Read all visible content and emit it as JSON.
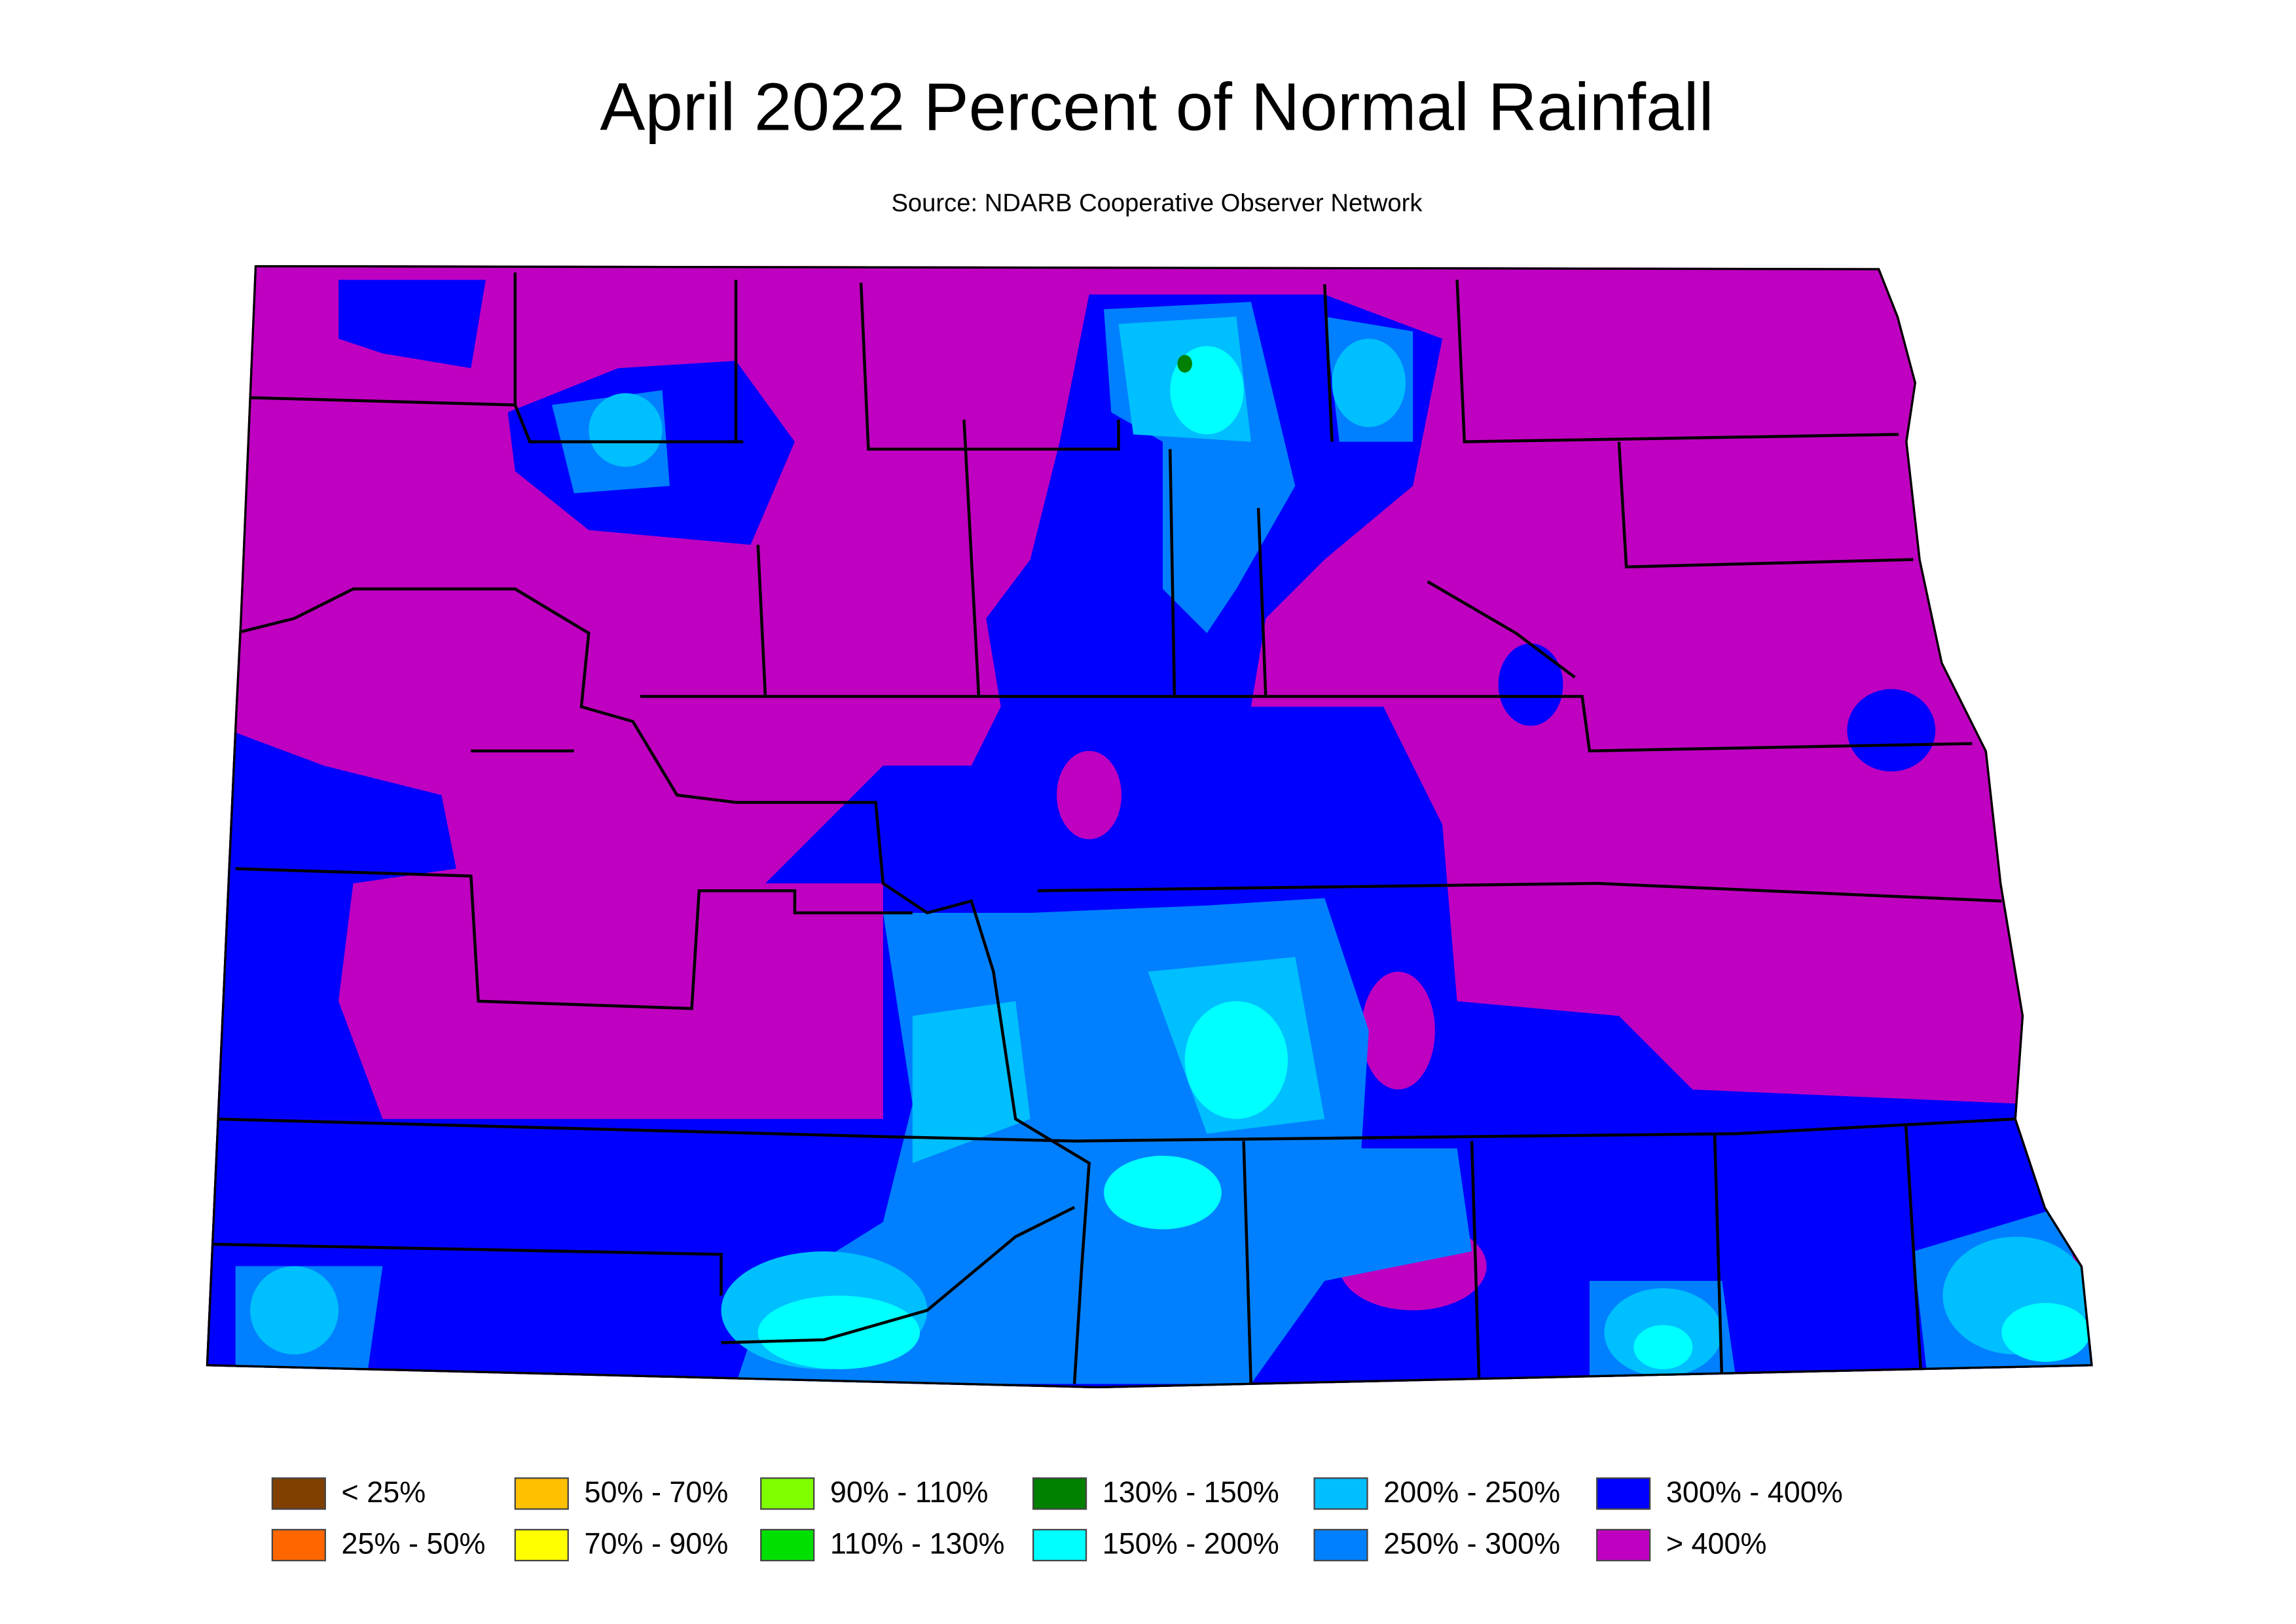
{
  "title": "April 2022 Percent of Normal Rainfall",
  "subtitle": "Source: NDARB Cooperative Observer Network",
  "legend": [
    {
      "label": "< 25%",
      "color": "#7f3f00"
    },
    {
      "label": "25% - 50%",
      "color": "#ff6600"
    },
    {
      "label": "50% - 70%",
      "color": "#ffc000"
    },
    {
      "label": "70% - 90%",
      "color": "#ffff00"
    },
    {
      "label": "90% - 110%",
      "color": "#80ff00"
    },
    {
      "label": "110% - 130%",
      "color": "#00e000"
    },
    {
      "label": "130% - 150%",
      "color": "#008000"
    },
    {
      "label": "150% - 200%",
      "color": "#00ffff"
    },
    {
      "label": "200% - 250%",
      "color": "#00bfff"
    },
    {
      "label": "250% - 300%",
      "color": "#0080ff"
    },
    {
      "label": "300% - 400%",
      "color": "#0000ff"
    },
    {
      "label": "> 400%",
      "color": "#c000c0"
    }
  ]
}
